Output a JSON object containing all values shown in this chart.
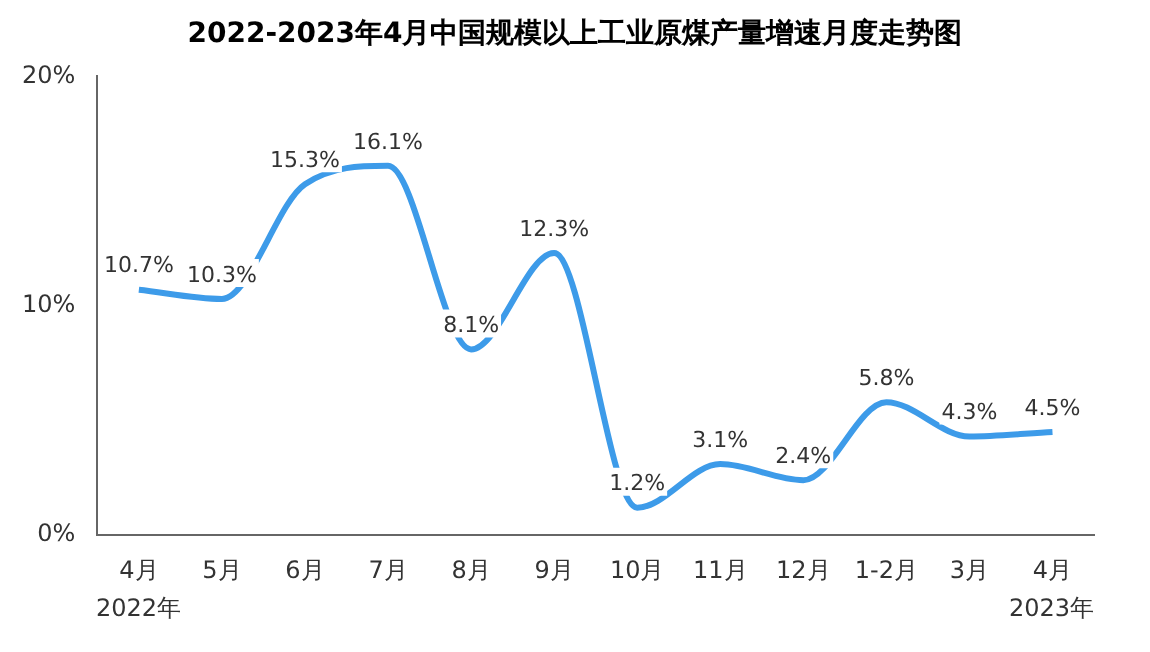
{
  "chart_data": {
    "type": "line",
    "title": "2022-2023年4月中国规模以上工业原煤产量增速月度走势图",
    "categories": [
      "4月",
      "5月",
      "6月",
      "7月",
      "8月",
      "9月",
      "10月",
      "11月",
      "12月",
      "1-2月",
      "3月",
      "4月"
    ],
    "series": [
      {
        "color": "#3d9be9",
        "values": [
          10.7,
          10.3,
          15.3,
          16.1,
          8.1,
          12.3,
          1.2,
          3.1,
          2.4,
          5.8,
          4.3,
          4.5
        ],
        "value_labels": [
          "10.7%",
          "10.3%",
          "15.3%",
          "16.1%",
          "8.1%",
          "12.3%",
          "1.2%",
          "3.1%",
          "2.4%",
          "5.8%",
          "4.3%",
          "4.5%"
        ]
      }
    ],
    "ylim": [
      0,
      20
    ],
    "yticks": [
      {
        "value": 0,
        "label": "0%"
      },
      {
        "value": 10,
        "label": "10%"
      },
      {
        "value": 20,
        "label": "20%"
      }
    ],
    "grid": false,
    "legend": false,
    "marker": "none",
    "line_style": "solid",
    "annotations": [
      "2022年",
      "2023年"
    ]
  }
}
